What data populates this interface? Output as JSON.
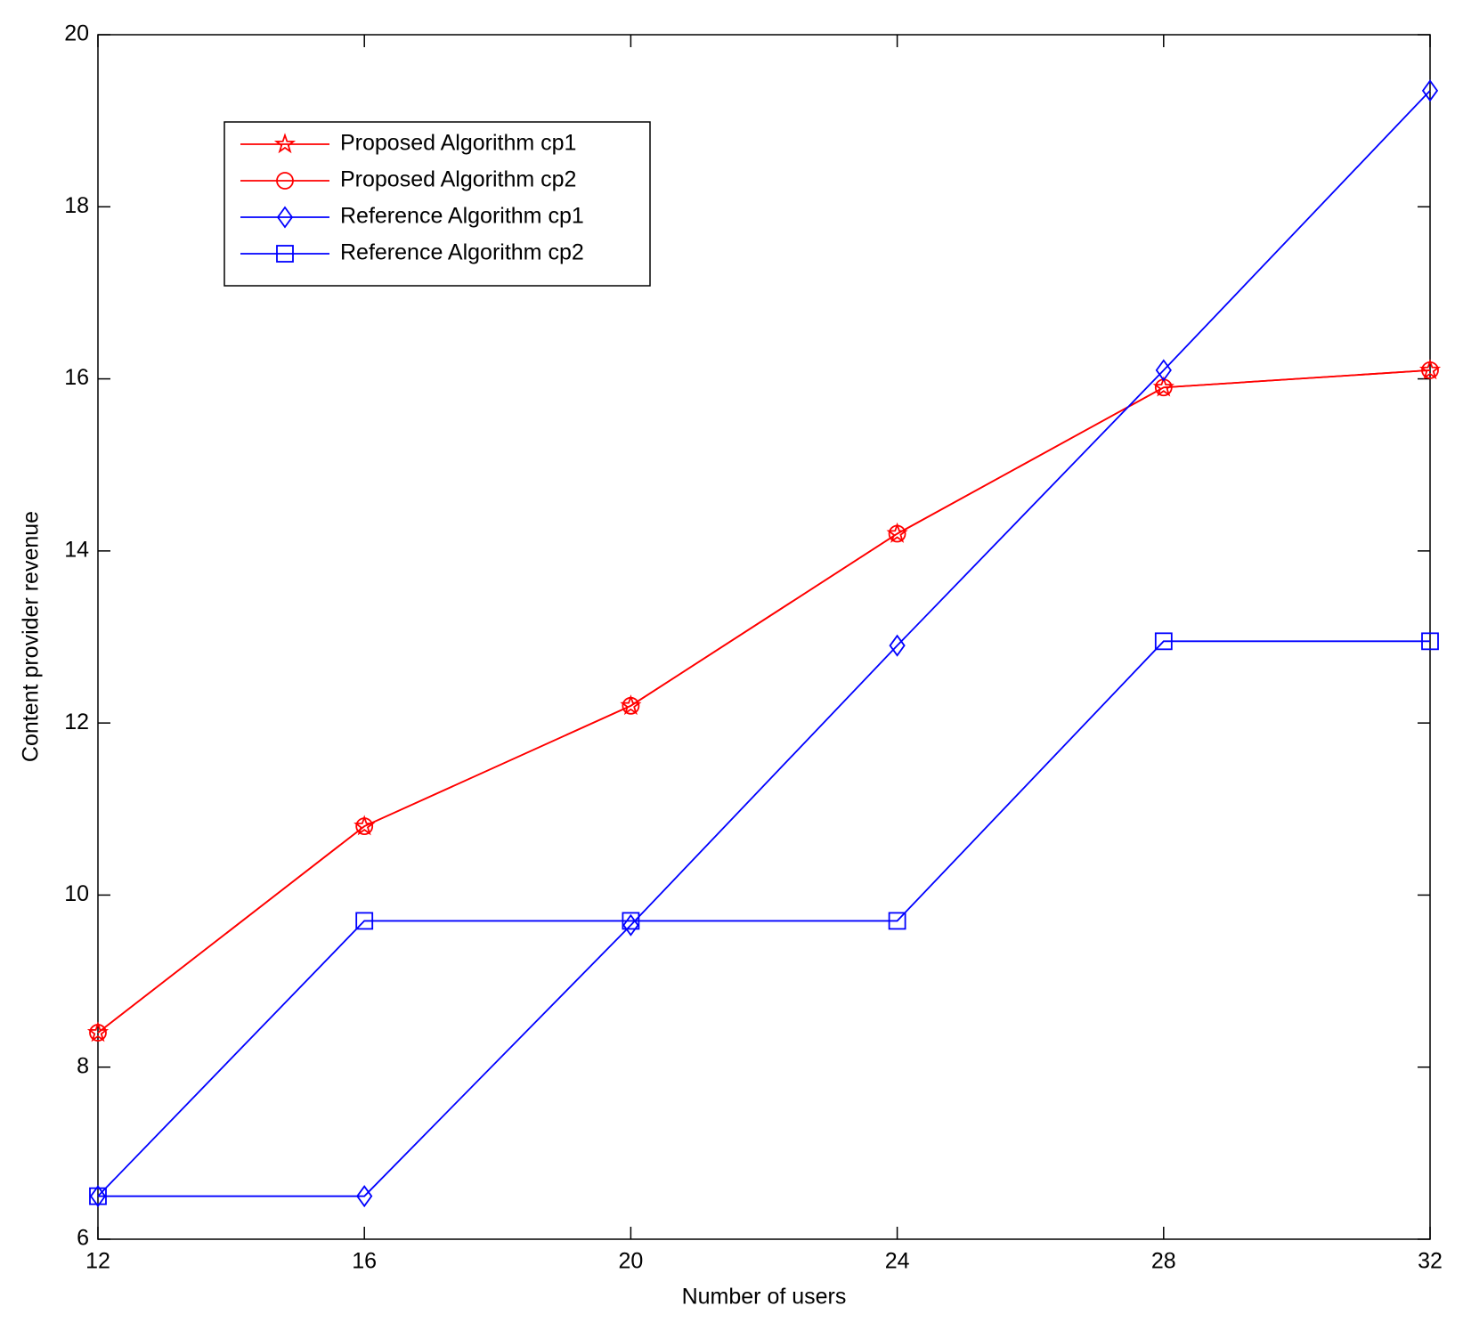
{
  "chart_data": {
    "type": "line",
    "x_label": "Number of users",
    "y_label": "Content provider revenue",
    "x": [
      12,
      16,
      20,
      24,
      28,
      32
    ],
    "xlim": [
      12,
      32
    ],
    "xticks": [
      12,
      16,
      20,
      24,
      28,
      32
    ],
    "ylim": [
      6,
      20
    ],
    "yticks": [
      6,
      8,
      10,
      12,
      14,
      16,
      18,
      20
    ],
    "grid": false,
    "legend": "upper left",
    "series": [
      {
        "name": "Proposed Algorithm cp1",
        "color": "#ff0000",
        "marker": "star",
        "values": [
          8.4,
          10.8,
          12.2,
          14.2,
          15.9,
          16.1
        ]
      },
      {
        "name": "Proposed Algorithm cp2",
        "color": "#ff0000",
        "marker": "circle",
        "values": [
          8.4,
          10.8,
          12.2,
          14.2,
          15.9,
          16.1
        ]
      },
      {
        "name": "Reference Algorithm cp1",
        "color": "#0000ff",
        "marker": "diamond",
        "values": [
          6.5,
          6.5,
          9.65,
          12.9,
          16.1,
          19.35
        ]
      },
      {
        "name": "Reference Algorithm cp2",
        "color": "#0000ff",
        "marker": "square",
        "values": [
          6.5,
          9.7,
          9.7,
          9.7,
          12.95,
          12.95
        ]
      }
    ]
  }
}
